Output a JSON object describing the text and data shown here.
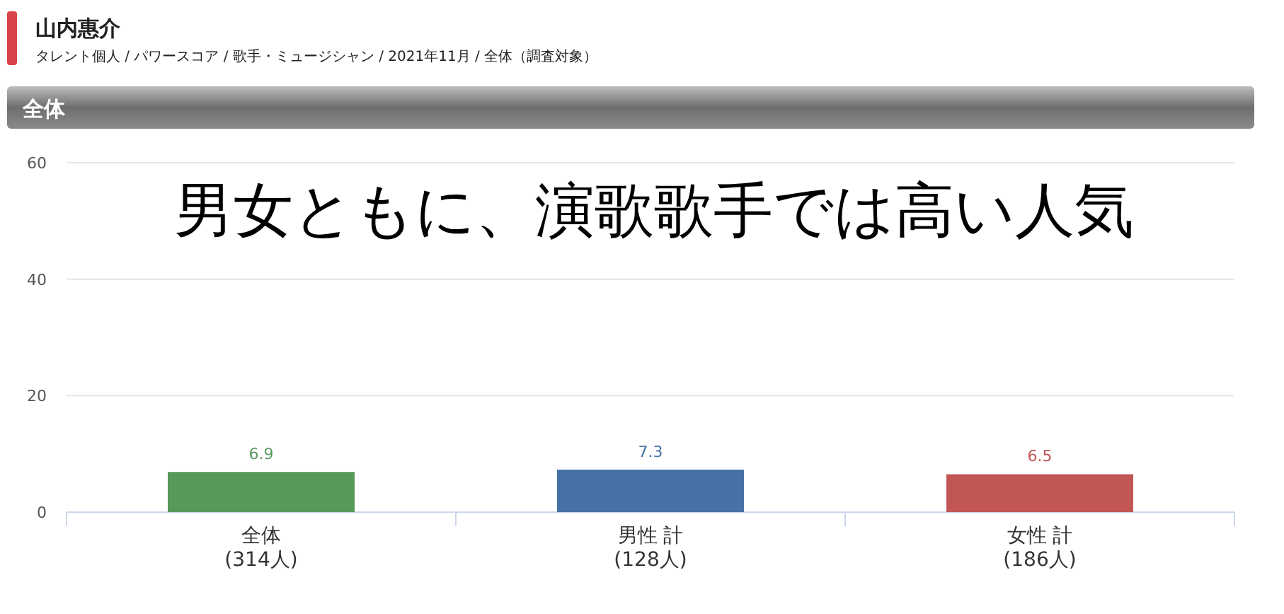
{
  "chart_data": {
    "type": "bar",
    "title": "山内惠介",
    "subtitle": "タレント個人 / パワースコア / 歌手・ミュージシャン / 2021年11月 / 全体（調査対象）",
    "annotations": [
      "全体",
      "男女ともに、演歌歌手では高い人気"
    ],
    "categories": [
      "全体\n(314人)",
      "男性 計\n(128人)",
      "女性 計\n(186人)"
    ],
    "values": [
      6.9,
      7.3,
      6.5
    ],
    "colors": [
      "#58995a",
      "#4672a8",
      "#c15654"
    ],
    "ylim": [
      0,
      60
    ],
    "yticks": [
      0,
      20,
      40,
      60
    ],
    "grid": "y",
    "data_labels": true
  }
}
